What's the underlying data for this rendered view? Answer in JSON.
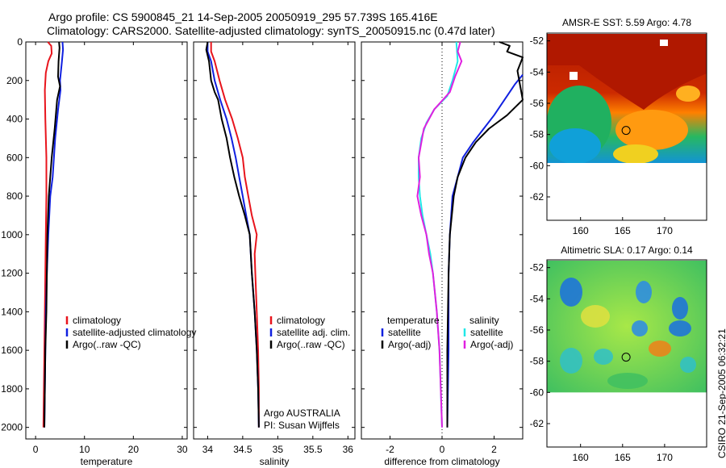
{
  "header": {
    "line1": "Argo profile: CS 5900845_21 14-Sep-2005 20050919_295 57.739S 165.416E",
    "line2": "Climatology: CARS2000. Satellite-adjusted climatology: synTS_20050915.nc (0.47d later)"
  },
  "watermark": "CSIRO 21-Sep-2005 06:32:21",
  "colors": {
    "climatology": "#e8141c",
    "satellite": "#1020e0",
    "argo": "#000000",
    "satellite_cyan": "#20e8e8",
    "argo_adj_magenta": "#e020e0",
    "map_background": "#ffffff"
  },
  "chart_data": [
    {
      "type": "line",
      "panel": "temperature",
      "xlabel": "temperature",
      "ylabel": "",
      "xlim": [
        -2,
        31
      ],
      "ylim": [
        0,
        2060
      ],
      "xticks": [
        0,
        10,
        20,
        30
      ],
      "yticks": [
        0,
        200,
        400,
        600,
        800,
        1000,
        1200,
        1400,
        1600,
        1800,
        2000
      ],
      "y_reversed": true,
      "legend": [
        "climatology",
        "satellite-adjusted climatology",
        "Argo(..raw -QC)"
      ],
      "legend_position": "lower-center",
      "series": [
        {
          "name": "climatology",
          "color": "#e8141c",
          "points": [
            [
              2.5,
              0
            ],
            [
              3.2,
              20
            ],
            [
              3.3,
              60
            ],
            [
              2.6,
              100
            ],
            [
              2.1,
              160
            ],
            [
              1.9,
              250
            ],
            [
              2.0,
              400
            ],
            [
              2.2,
              600
            ],
            [
              2.2,
              800
            ],
            [
              2.1,
              1000
            ],
            [
              2.0,
              1200
            ],
            [
              1.9,
              1400
            ],
            [
              1.8,
              1600
            ],
            [
              1.7,
              1800
            ],
            [
              1.6,
              2000
            ]
          ]
        },
        {
          "name": "satellite-adjusted climatology",
          "color": "#1020e0",
          "points": [
            [
              5.5,
              0
            ],
            [
              5.6,
              40
            ],
            [
              5.4,
              100
            ],
            [
              5.0,
              200
            ],
            [
              5.1,
              250
            ],
            [
              4.6,
              350
            ],
            [
              4.0,
              500
            ],
            [
              3.5,
              700
            ],
            [
              3.0,
              800
            ],
            [
              2.6,
              1000
            ],
            [
              2.3,
              1200
            ],
            [
              2.1,
              1400
            ],
            [
              2.0,
              1600
            ],
            [
              1.9,
              1800
            ],
            [
              1.8,
              2000
            ]
          ]
        },
        {
          "name": "Argo(..raw -QC)",
          "color": "#000000",
          "points": [
            [
              4.8,
              0
            ],
            [
              4.9,
              30
            ],
            [
              4.7,
              100
            ],
            [
              4.6,
              180
            ],
            [
              5.0,
              230
            ],
            [
              4.4,
              300
            ],
            [
              3.9,
              450
            ],
            [
              3.3,
              600
            ],
            [
              3.0,
              700
            ],
            [
              2.7,
              800
            ],
            [
              2.4,
              1000
            ],
            [
              2.3,
              1200
            ],
            [
              2.2,
              1400
            ],
            [
              2.0,
              1600
            ],
            [
              1.9,
              1800
            ],
            [
              1.8,
              2000
            ]
          ]
        }
      ]
    },
    {
      "type": "line",
      "panel": "salinity",
      "xlabel": "salinity",
      "ylabel": "",
      "xlim": [
        33.8,
        36.1
      ],
      "ylim": [
        0,
        2060
      ],
      "xticks": [
        34,
        34.5,
        35,
        35.5,
        36
      ],
      "y_reversed": true,
      "legend": [
        "climatology",
        "satellite adj. clim.",
        "Argo(..raw -QC)"
      ],
      "legend_position": "lower-right",
      "annotation": [
        "Argo AUSTRALIA",
        "PI: Susan Wijffels"
      ],
      "series": [
        {
          "name": "climatology",
          "color": "#e8141c",
          "points": [
            [
              34.05,
              0
            ],
            [
              34.05,
              50
            ],
            [
              34.1,
              100
            ],
            [
              34.17,
              200
            ],
            [
              34.25,
              300
            ],
            [
              34.35,
              400
            ],
            [
              34.43,
              500
            ],
            [
              34.5,
              600
            ],
            [
              34.53,
              700
            ],
            [
              34.58,
              800
            ],
            [
              34.63,
              900
            ],
            [
              34.7,
              1000
            ],
            [
              34.67,
              1100
            ],
            [
              34.68,
              1200
            ],
            [
              34.7,
              1400
            ],
            [
              34.72,
              1600
            ],
            [
              34.73,
              1800
            ],
            [
              34.73,
              2000
            ]
          ]
        },
        {
          "name": "satellite adj. clim.",
          "color": "#1020e0",
          "points": [
            [
              34.0,
              0
            ],
            [
              34.0,
              50
            ],
            [
              34.05,
              100
            ],
            [
              34.1,
              200
            ],
            [
              34.18,
              300
            ],
            [
              34.27,
              400
            ],
            [
              34.34,
              500
            ],
            [
              34.4,
              600
            ],
            [
              34.45,
              700
            ],
            [
              34.5,
              800
            ],
            [
              34.55,
              900
            ],
            [
              34.6,
              1000
            ],
            [
              34.63,
              1200
            ],
            [
              34.67,
              1400
            ],
            [
              34.7,
              1600
            ],
            [
              34.72,
              1800
            ],
            [
              34.73,
              2000
            ]
          ]
        },
        {
          "name": "Argo(..raw -QC)",
          "color": "#000000",
          "points": [
            [
              34.0,
              0
            ],
            [
              33.98,
              40
            ],
            [
              34.02,
              100
            ],
            [
              34.05,
              200
            ],
            [
              34.1,
              260
            ],
            [
              34.15,
              300
            ],
            [
              34.2,
              400
            ],
            [
              34.27,
              500
            ],
            [
              34.32,
              600
            ],
            [
              34.38,
              700
            ],
            [
              34.45,
              800
            ],
            [
              34.53,
              900
            ],
            [
              34.6,
              1000
            ],
            [
              34.63,
              1200
            ],
            [
              34.67,
              1400
            ],
            [
              34.7,
              1600
            ],
            [
              34.72,
              1800
            ],
            [
              34.73,
              2000
            ]
          ]
        }
      ]
    },
    {
      "type": "line",
      "panel": "difference",
      "xlabel": "difference from climatology",
      "ylabel": "",
      "xlim": [
        -3.1,
        3.1
      ],
      "ylim": [
        0,
        2060
      ],
      "xticks": [
        -2,
        0,
        2
      ],
      "y_reversed": true,
      "legend_groups": [
        {
          "title": "temperature",
          "entries": [
            "satellite",
            "Argo(-adj)"
          ]
        },
        {
          "title": "salinity",
          "entries": [
            "satellite",
            "Argo(-adj)"
          ]
        }
      ],
      "legend_position": "lower-center",
      "series": [
        {
          "name": "temperature satellite",
          "color": "#1020e0",
          "points": [
            [
              3.1,
              170
            ],
            [
              2.8,
              220
            ],
            [
              2.5,
              280
            ],
            [
              2.0,
              380
            ],
            [
              1.6,
              450
            ],
            [
              1.2,
              520
            ],
            [
              0.8,
              600
            ],
            [
              0.6,
              700
            ],
            [
              0.4,
              800
            ],
            [
              0.3,
              1000
            ],
            [
              0.25,
              1200
            ],
            [
              0.25,
              1600
            ],
            [
              0.2,
              2000
            ]
          ]
        },
        {
          "name": "temperature Argo(-adj)",
          "color": "#000000",
          "points": [
            [
              2.2,
              0
            ],
            [
              2.6,
              20
            ],
            [
              2.5,
              50
            ],
            [
              3.1,
              80
            ],
            [
              2.9,
              150
            ],
            [
              3.1,
              300
            ],
            [
              2.5,
              380
            ],
            [
              1.8,
              450
            ],
            [
              1.3,
              520
            ],
            [
              0.9,
              600
            ],
            [
              0.6,
              700
            ],
            [
              0.45,
              800
            ],
            [
              0.3,
              1000
            ],
            [
              0.25,
              1200
            ],
            [
              0.2,
              1600
            ],
            [
              0.2,
              2000
            ]
          ]
        },
        {
          "name": "salinity satellite",
          "color": "#20e8e8",
          "points": [
            [
              0.55,
              0
            ],
            [
              0.6,
              100
            ],
            [
              0.4,
              200
            ],
            [
              0.2,
              280
            ],
            [
              -0.3,
              350
            ],
            [
              -0.6,
              420
            ],
            [
              -0.8,
              500
            ],
            [
              -0.9,
              600
            ],
            [
              -0.9,
              700
            ],
            [
              -0.85,
              800
            ],
            [
              -0.75,
              900
            ],
            [
              -0.6,
              1000
            ],
            [
              -0.45,
              1100
            ],
            [
              -0.35,
              1200
            ],
            [
              -0.2,
              1400
            ],
            [
              -0.1,
              1600
            ],
            [
              -0.05,
              1800
            ],
            [
              0.0,
              2000
            ]
          ]
        },
        {
          "name": "salinity Argo(-adj)",
          "color": "#e020e0",
          "points": [
            [
              0.7,
              0
            ],
            [
              0.6,
              50
            ],
            [
              0.75,
              100
            ],
            [
              0.5,
              180
            ],
            [
              0.3,
              260
            ],
            [
              -0.3,
              350
            ],
            [
              -0.7,
              450
            ],
            [
              -0.9,
              600
            ],
            [
              -0.85,
              700
            ],
            [
              -0.95,
              800
            ],
            [
              -0.8,
              900
            ],
            [
              -0.6,
              1000
            ],
            [
              -0.5,
              1100
            ],
            [
              -0.35,
              1200
            ],
            [
              -0.2,
              1400
            ],
            [
              -0.1,
              1600
            ],
            [
              -0.05,
              1800
            ],
            [
              0.0,
              2000
            ]
          ]
        }
      ]
    },
    {
      "type": "heatmap",
      "panel": "sst-map",
      "title": "AMSR-E SST: 5.59 Argo: 4.78",
      "xlim": [
        156,
        175
      ],
      "ylim": [
        -63.5,
        -51.5
      ],
      "xticks": [
        160,
        165,
        170
      ],
      "yticks": [
        -52,
        -54,
        -56,
        -58,
        -60,
        -62
      ],
      "data_extent_lat": [
        -60,
        -51.5
      ],
      "colormap": "jet",
      "marker": {
        "lon": 165.416,
        "lat": -57.739
      }
    },
    {
      "type": "heatmap",
      "panel": "sla-map",
      "title": "Altimetric SLA: 0.17 Argo: 0.14",
      "xlim": [
        156,
        175
      ],
      "ylim": [
        -63.5,
        -51.5
      ],
      "xticks": [
        160,
        165,
        170
      ],
      "yticks": [
        -52,
        -54,
        -56,
        -58,
        -60,
        -62
      ],
      "data_extent_lat": [
        -60,
        -51.5
      ],
      "colormap": "jet",
      "marker": {
        "lon": 165.416,
        "lat": -57.739
      }
    }
  ]
}
